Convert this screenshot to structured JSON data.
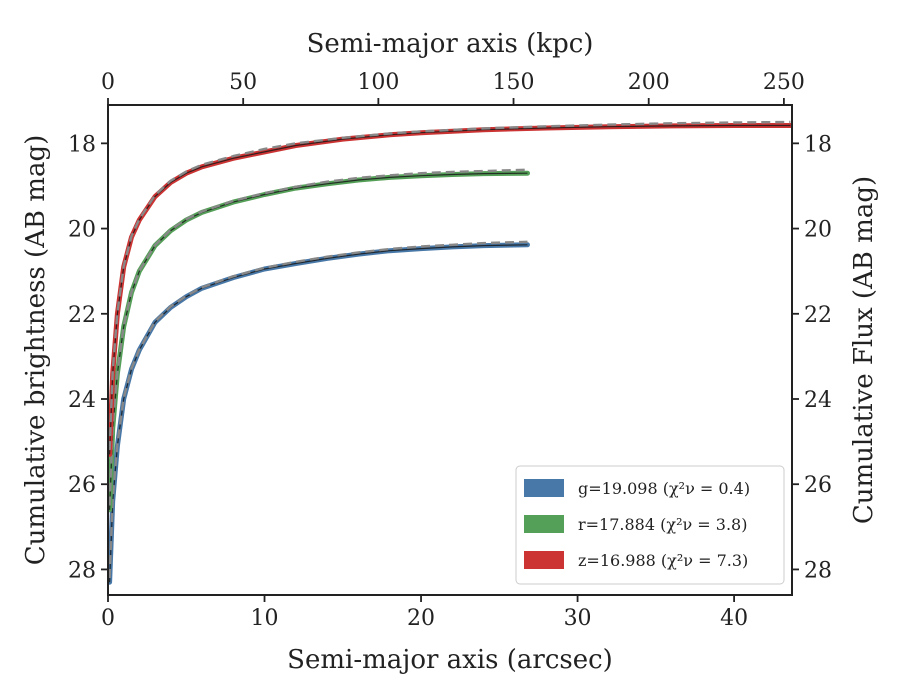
{
  "chart_data": {
    "type": "line",
    "xlabel": "Semi-major axis (arcsec)",
    "x2label": "Semi-major axis (kpc)",
    "ylabel": "Cumulative brightness (AB mag)",
    "y2label": "Cumulative Flux (AB mag)",
    "xlim": [
      0,
      43.7
    ],
    "x2lim": [
      0,
      253
    ],
    "ylim": [
      28.6,
      17.1
    ],
    "y_inverted": true,
    "x_ticks": [
      0,
      10,
      20,
      30,
      40
    ],
    "x2_ticks": [
      0,
      50,
      100,
      150,
      200,
      250
    ],
    "y_ticks": [
      18,
      20,
      22,
      24,
      26,
      28
    ],
    "y2_ticks": [
      18,
      20,
      22,
      24,
      26,
      28
    ],
    "grid": false,
    "legend_position": "bottom-right",
    "series": [
      {
        "name": "g",
        "legend": "g=19.098 (χ²ν = 0.4)",
        "color": "#4878a8",
        "fit_color": "#888888",
        "x": [
          0.1,
          0.3,
          0.6,
          1,
          1.5,
          2,
          3,
          4,
          5,
          6,
          8,
          10,
          12,
          14,
          16,
          18,
          20,
          22,
          24,
          26.8
        ],
        "values": [
          28.3,
          26.4,
          25.1,
          24.0,
          23.3,
          22.85,
          22.2,
          21.85,
          21.6,
          21.4,
          21.15,
          20.95,
          20.82,
          20.7,
          20.6,
          20.52,
          20.47,
          20.43,
          20.4,
          20.38
        ],
        "fit_x": [
          0.1,
          0.3,
          0.6,
          1,
          1.5,
          2,
          3,
          4,
          5,
          6,
          8,
          10,
          12,
          14,
          16,
          18,
          20,
          22,
          24,
          26.8
        ],
        "fit_values": [
          28.2,
          26.35,
          25.05,
          23.98,
          23.28,
          22.84,
          22.18,
          21.83,
          21.58,
          21.38,
          21.12,
          20.92,
          20.78,
          20.66,
          20.56,
          20.48,
          20.42,
          20.38,
          20.34,
          20.31
        ]
      },
      {
        "name": "r",
        "legend": "r=17.884 (χ²ν = 3.8)",
        "color": "#55a058",
        "fit_color": "#888888",
        "x": [
          0.1,
          0.3,
          0.6,
          1,
          1.5,
          2,
          3,
          4,
          5,
          6,
          8,
          10,
          12,
          14,
          16,
          18,
          20,
          22,
          24,
          26.8
        ],
        "values": [
          26.6,
          24.7,
          23.4,
          22.3,
          21.5,
          21.0,
          20.4,
          20.05,
          19.8,
          19.62,
          19.38,
          19.2,
          19.05,
          18.95,
          18.86,
          18.8,
          18.76,
          18.73,
          18.71,
          18.7
        ],
        "fit_x": [
          0.1,
          0.3,
          0.6,
          1,
          1.5,
          2,
          3,
          4,
          5,
          6,
          8,
          10,
          12,
          14,
          16,
          18,
          20,
          22,
          24,
          26.8
        ],
        "fit_values": [
          26.5,
          24.65,
          23.37,
          22.28,
          21.49,
          20.99,
          20.39,
          20.03,
          19.78,
          19.6,
          19.35,
          19.17,
          19.02,
          18.9,
          18.81,
          18.75,
          18.7,
          18.67,
          18.65,
          18.62
        ]
      },
      {
        "name": "z",
        "legend": "z=16.988 (χ²ν = 7.3)",
        "color": "#cc3333",
        "fit_color": "#888888",
        "x": [
          0.1,
          0.3,
          0.6,
          1,
          1.5,
          2,
          3,
          4,
          5,
          6,
          8,
          10,
          12,
          15,
          18,
          20,
          24,
          28,
          32,
          36,
          40,
          43.6
        ],
        "values": [
          25.3,
          23.4,
          22.0,
          20.9,
          20.2,
          19.8,
          19.25,
          18.92,
          18.7,
          18.55,
          18.35,
          18.2,
          18.05,
          17.9,
          17.8,
          17.75,
          17.68,
          17.64,
          17.61,
          17.59,
          17.58,
          17.58
        ],
        "fit_x": [
          0.1,
          0.3,
          0.6,
          1,
          1.5,
          2,
          3,
          4,
          5,
          6,
          8,
          10,
          12,
          15,
          18,
          20,
          24,
          28,
          32,
          36,
          40,
          43.6
        ],
        "fit_values": [
          25.2,
          23.35,
          21.97,
          20.88,
          20.18,
          19.78,
          19.22,
          18.88,
          18.66,
          18.5,
          18.3,
          18.13,
          18.0,
          17.87,
          17.77,
          17.72,
          17.65,
          17.6,
          17.56,
          17.53,
          17.51,
          17.5
        ]
      }
    ]
  }
}
